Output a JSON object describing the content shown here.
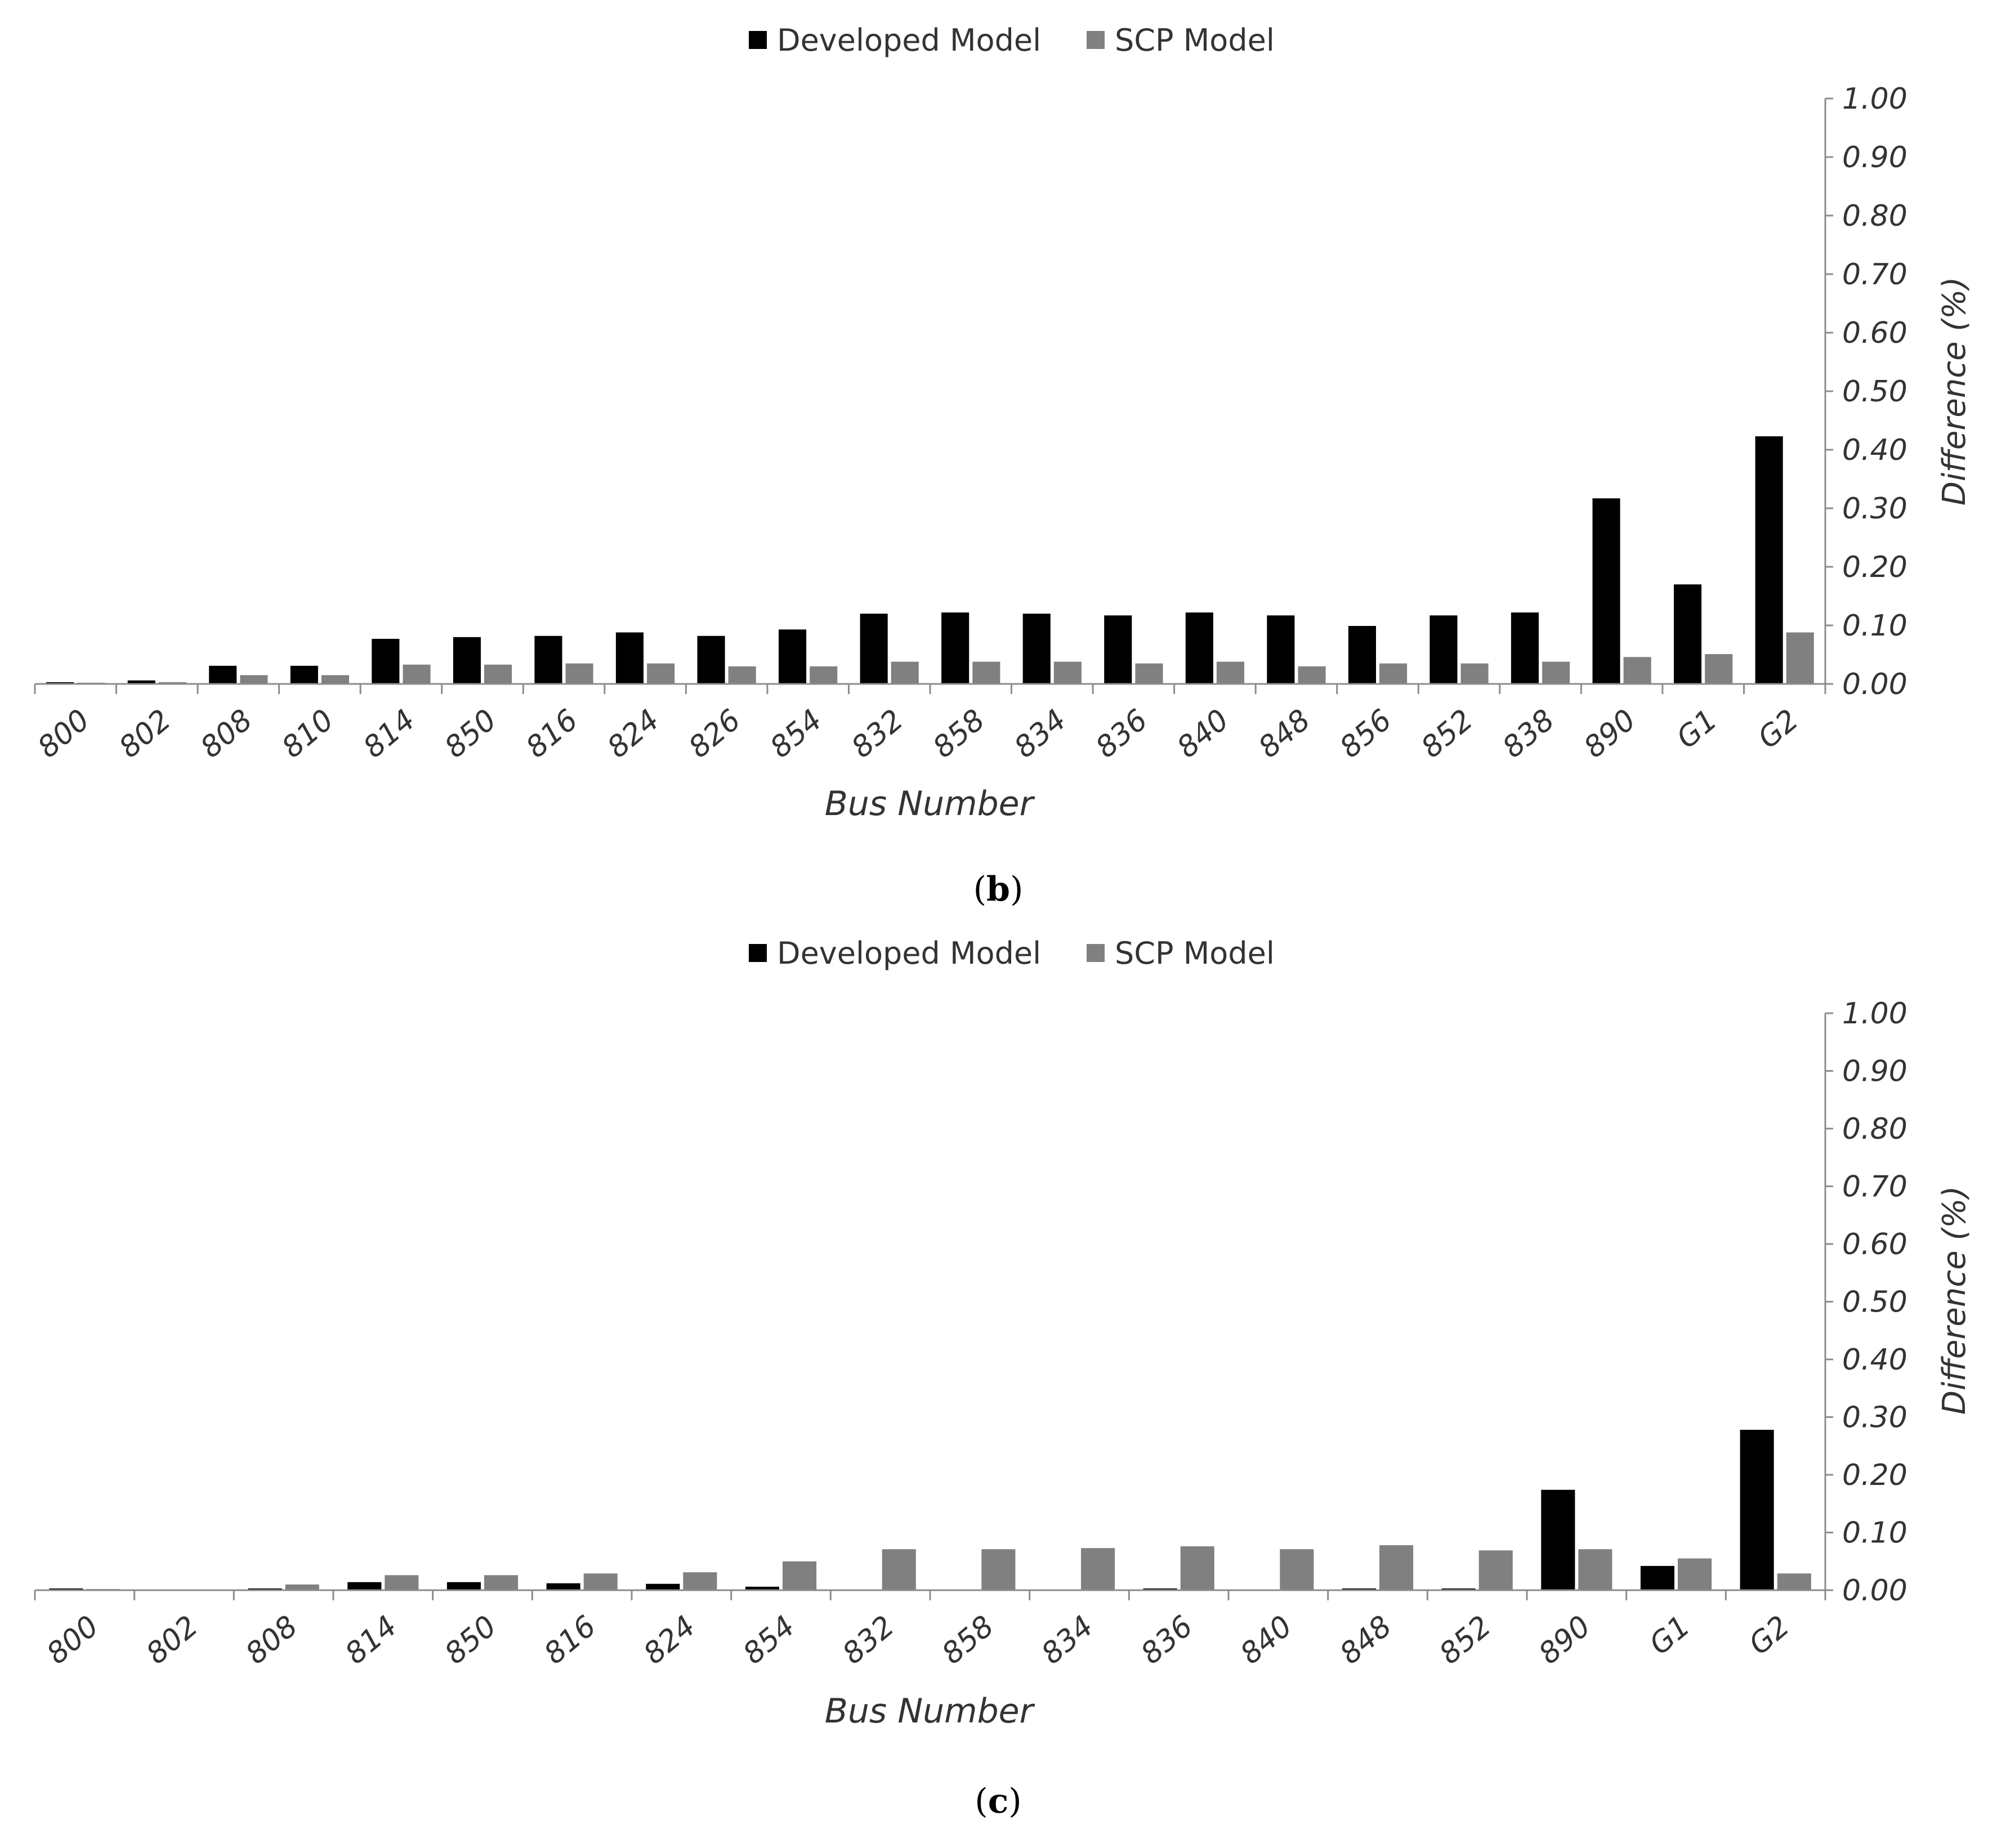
{
  "colors": {
    "developed": "#000000",
    "scp": "#808080",
    "axis": "#8c8c8c",
    "text": "#333333"
  },
  "chart_data": [
    {
      "type": "bar",
      "caption": "b",
      "title": "",
      "xlabel": "Bus Number",
      "ylabel": "Difference (%)",
      "ylim": [
        0,
        1
      ],
      "yticks": [
        "0.00",
        "0.10",
        "0.20",
        "0.30",
        "0.40",
        "0.50",
        "0.60",
        "0.70",
        "0.80",
        "0.90",
        "1.00"
      ],
      "y_axis_side": "right",
      "legend_position": "top-center",
      "categories": [
        "800",
        "802",
        "808",
        "810",
        "814",
        "850",
        "816",
        "824",
        "826",
        "854",
        "832",
        "858",
        "834",
        "836",
        "840",
        "848",
        "856",
        "852",
        "838",
        "890",
        "G1",
        "G2"
      ],
      "series": [
        {
          "name": "Developed Model",
          "values": [
            0.003,
            0.006,
            0.031,
            0.031,
            0.077,
            0.08,
            0.082,
            0.088,
            0.082,
            0.093,
            0.12,
            0.122,
            0.12,
            0.117,
            0.122,
            0.117,
            0.099,
            0.117,
            0.122,
            0.317,
            0.17,
            0.423
          ]
        },
        {
          "name": "SCP Model",
          "values": [
            0.002,
            0.003,
            0.015,
            0.015,
            0.033,
            0.033,
            0.035,
            0.035,
            0.03,
            0.03,
            0.038,
            0.038,
            0.038,
            0.035,
            0.038,
            0.03,
            0.035,
            0.035,
            0.038,
            0.046,
            0.051,
            0.088
          ]
        }
      ]
    },
    {
      "type": "bar",
      "caption": "c",
      "title": "",
      "xlabel": "Bus Number",
      "ylabel": "Difference (%)",
      "ylim": [
        0,
        1
      ],
      "yticks": [
        "0.00",
        "0.10",
        "0.20",
        "0.30",
        "0.40",
        "0.50",
        "0.60",
        "0.70",
        "0.80",
        "0.90",
        "1.00"
      ],
      "y_axis_side": "right",
      "legend_position": "top-center",
      "categories": [
        "800",
        "802",
        "808",
        "814",
        "850",
        "816",
        "824",
        "854",
        "832",
        "858",
        "834",
        "836",
        "840",
        "848",
        "852",
        "890",
        "G1",
        "G2"
      ],
      "series": [
        {
          "name": "Developed Model",
          "values": [
            0.003,
            0.0,
            0.003,
            0.014,
            0.014,
            0.012,
            0.011,
            0.006,
            0.0,
            0.0,
            0.0,
            0.003,
            0.0,
            0.003,
            0.003,
            0.174,
            0.042,
            0.278
          ]
        },
        {
          "name": "SCP Model",
          "values": [
            0.002,
            0.0,
            0.01,
            0.026,
            0.026,
            0.029,
            0.031,
            0.05,
            0.071,
            0.071,
            0.073,
            0.076,
            0.071,
            0.078,
            0.069,
            0.071,
            0.055,
            0.029
          ]
        }
      ]
    }
  ]
}
